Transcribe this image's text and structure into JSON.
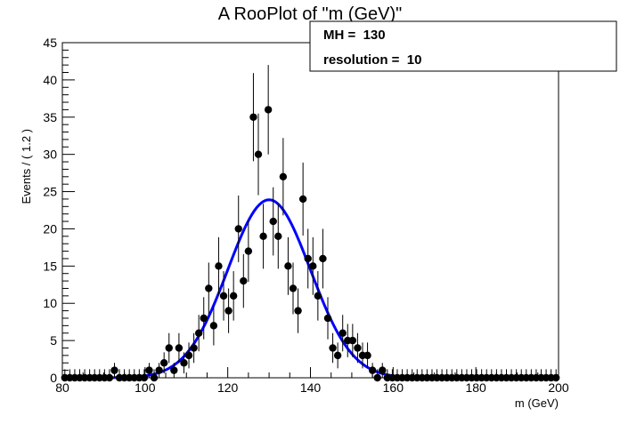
{
  "chart_data": {
    "type": "scatter",
    "title": "A RooPlot of \"m (GeV)\"",
    "xlabel": "m (GeV)",
    "ylabel": "Events / ( 1.2 )",
    "xlim": [
      80,
      200
    ],
    "ylim": [
      0,
      45
    ],
    "x_ticks": [
      "80",
      "100",
      "120",
      "140",
      "160",
      "180",
      "200"
    ],
    "y_ticks": [
      "0",
      "5",
      "10",
      "15",
      "20",
      "25",
      "30",
      "35",
      "40",
      "45"
    ],
    "stats_box": {
      "line1": "MH =  130",
      "line2": "resolution =  10"
    },
    "series": [
      {
        "kind": "points-with-errors",
        "color": "#000000",
        "bin_width": 1.2,
        "x_start": 80.6,
        "y": [
          0,
          0,
          0,
          0,
          0,
          0,
          0,
          0,
          0,
          0,
          1,
          0,
          0,
          0,
          0,
          0,
          0,
          1,
          0,
          1,
          2,
          4,
          1,
          4,
          2,
          3,
          4,
          6,
          8,
          12,
          7,
          15,
          11,
          9,
          11,
          20,
          13,
          17,
          35,
          30,
          19,
          36,
          21,
          19,
          27,
          15,
          12,
          9,
          24,
          16,
          15,
          11,
          16,
          8,
          4,
          3,
          6,
          5,
          5,
          4,
          3,
          3,
          1,
          0,
          1,
          0,
          0,
          0,
          0,
          0,
          0,
          0,
          0,
          0,
          0,
          0,
          0,
          0,
          0,
          0,
          0,
          0,
          0,
          0,
          0,
          0,
          0,
          0,
          0,
          0,
          0,
          0,
          0,
          0,
          0,
          0,
          0,
          0,
          0,
          0
        ]
      },
      {
        "kind": "gaussian-fit",
        "color": "#0000ff",
        "mean": 130,
        "sigma": 10,
        "peak": 23.9
      }
    ]
  }
}
